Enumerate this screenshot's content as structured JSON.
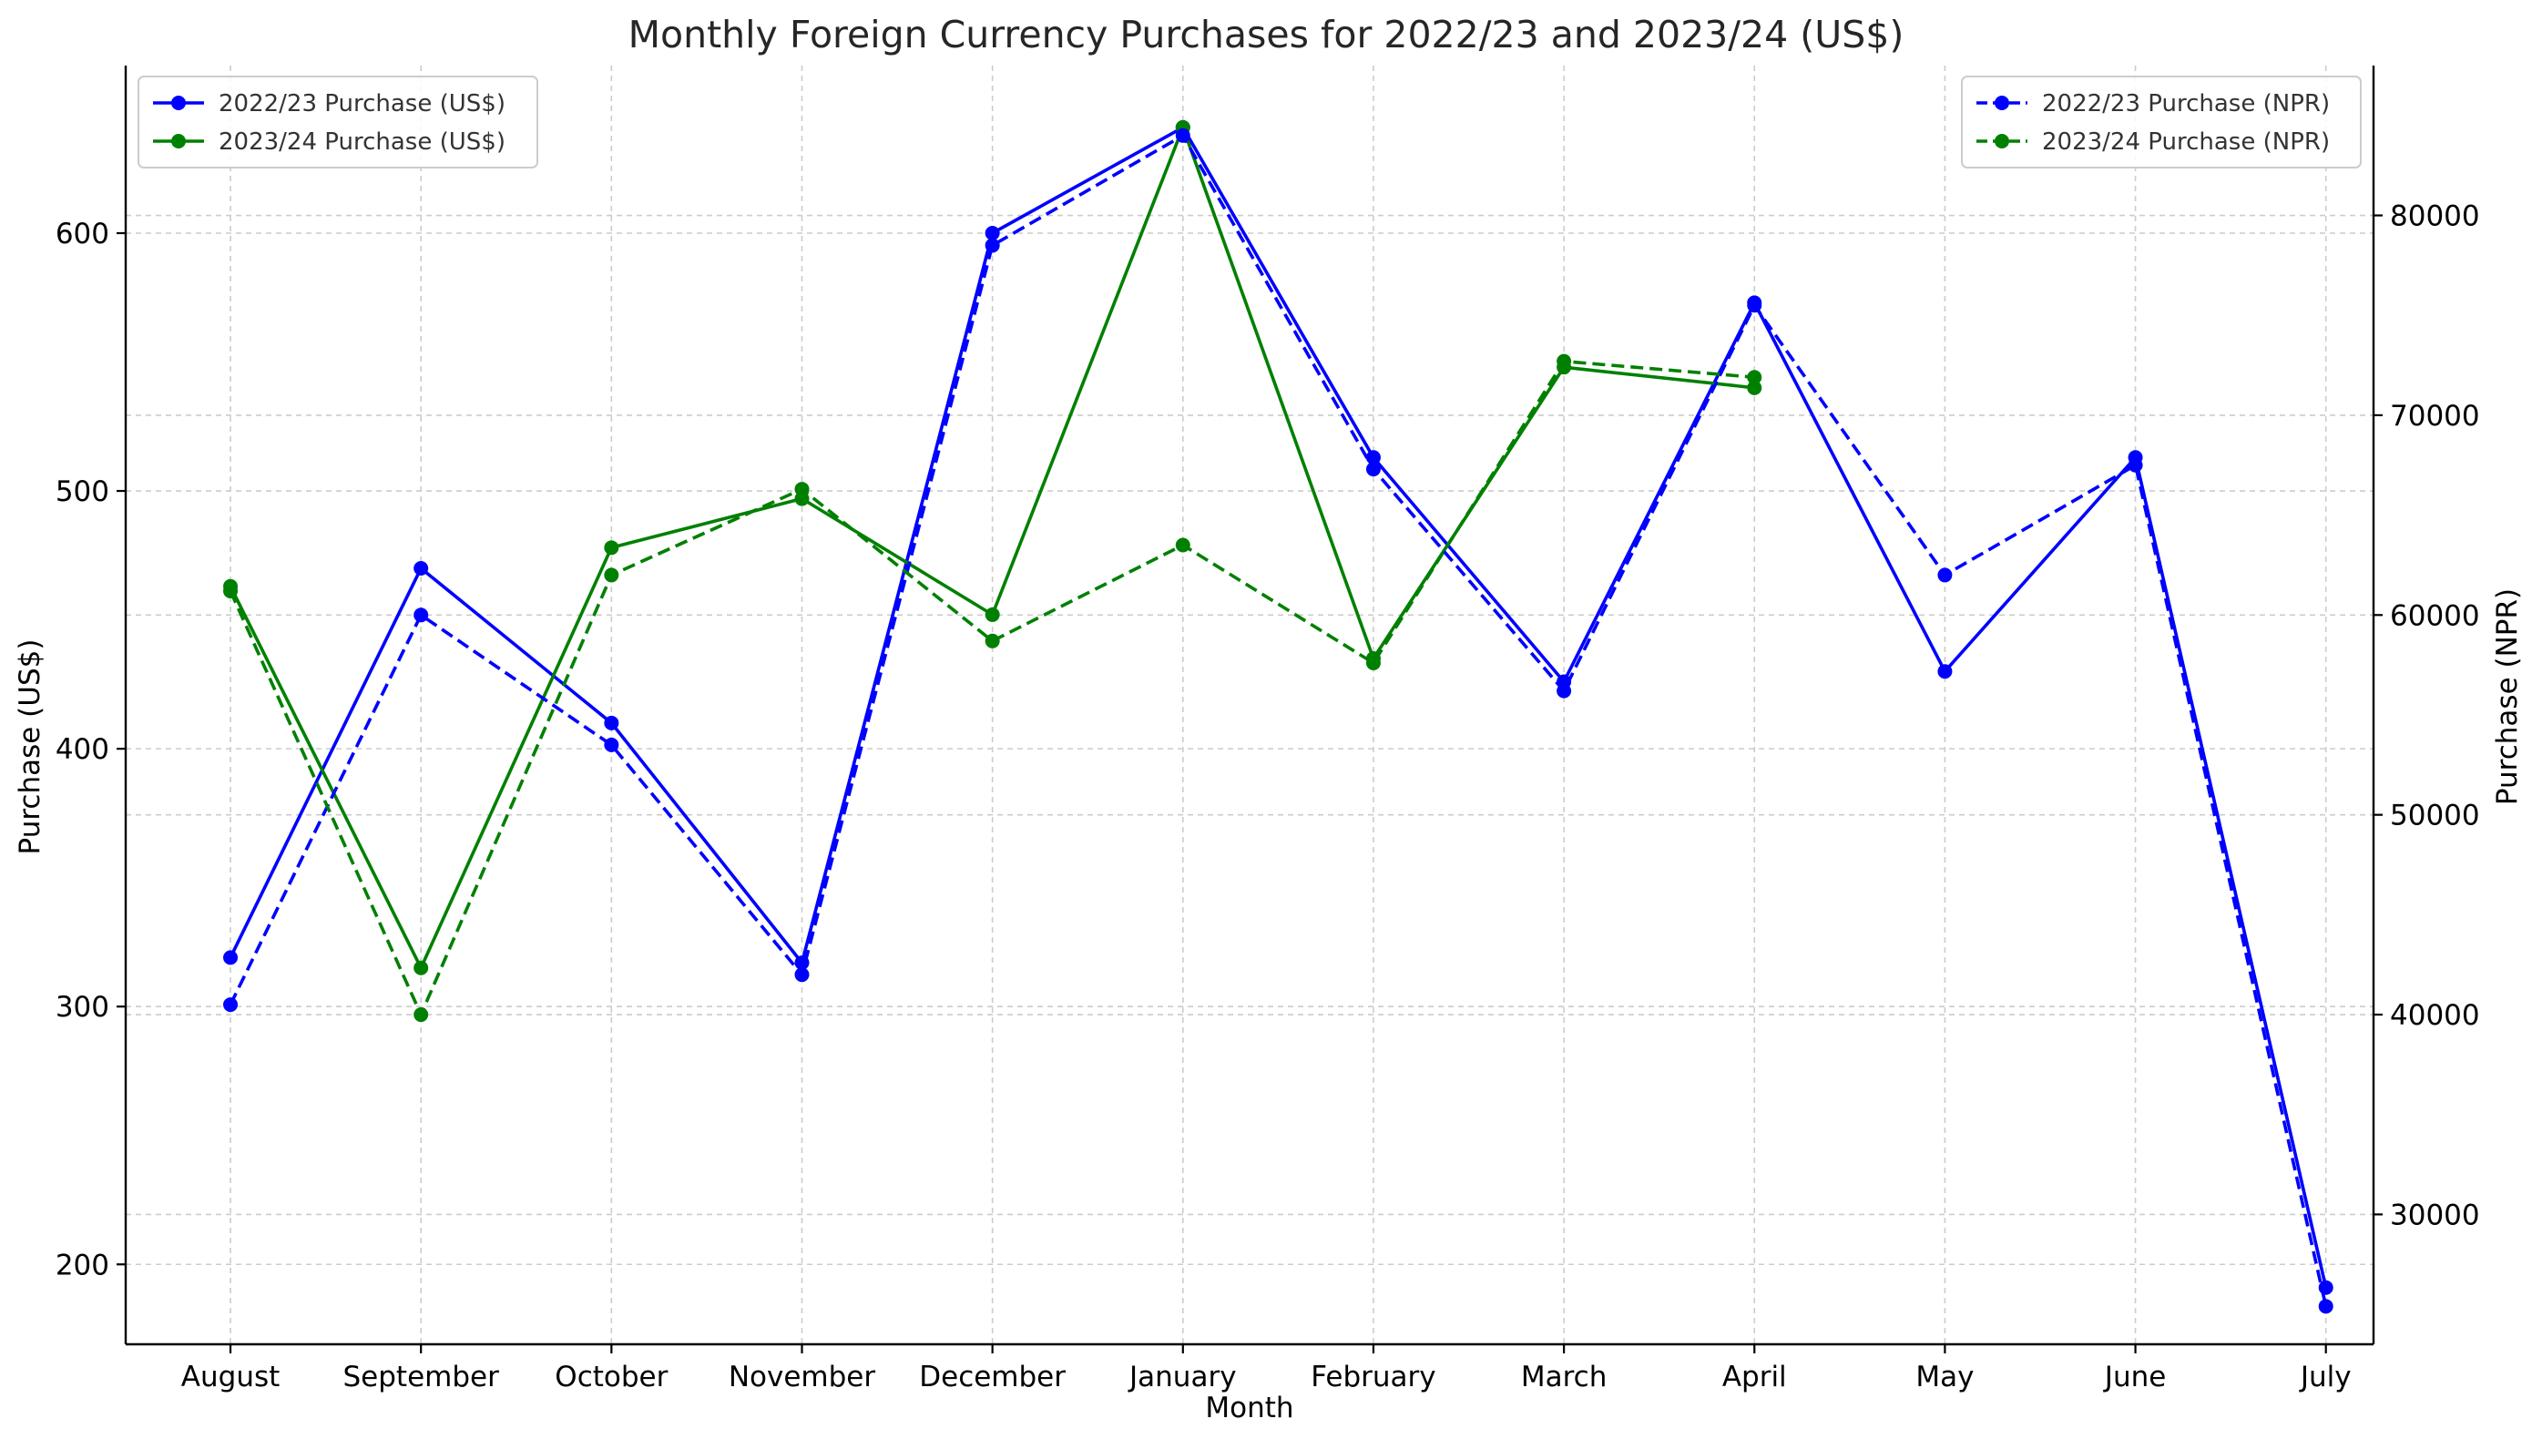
{
  "chart_data": {
    "type": "line",
    "title": "Monthly Foreign Currency Purchases for 2022/23 and 2023/24 (US$)",
    "xlabel": "Month",
    "ylabel": "Purchase (US$)",
    "y2label": "Purchase (NPR)",
    "categories": [
      "August",
      "September",
      "October",
      "November",
      "December",
      "January",
      "February",
      "March",
      "April",
      "May",
      "June",
      "July"
    ],
    "ylim": [
      169,
      665
    ],
    "y2lim": [
      23500,
      87500
    ],
    "yticks": [
      200,
      300,
      400,
      500,
      600
    ],
    "y2ticks": [
      30000,
      40000,
      50000,
      60000,
      70000,
      80000
    ],
    "y2tick_labels": [
      "30000",
      "40000",
      "50000",
      "60000",
      "70000",
      "80000"
    ],
    "grid": true,
    "legend_left_placement": "upper-left",
    "legend_right_placement": "upper-right",
    "series": [
      {
        "name": "2022/23 Purchase (US$)",
        "axis": "left",
        "color": "#0000ff",
        "dashed": false,
        "values": [
          319,
          470,
          410,
          317,
          600,
          641,
          513,
          426,
          573,
          430,
          513,
          191
        ]
      },
      {
        "name": "2023/24 Purchase (US$)",
        "axis": "left",
        "color": "#008000",
        "dashed": false,
        "values": [
          463,
          315,
          478,
          497,
          452,
          641,
          435,
          548,
          540,
          null,
          null,
          null
        ]
      },
      {
        "name": "2022/23 Purchase (NPR)",
        "axis": "right",
        "color": "#0000ff",
        "dashed": true,
        "values": [
          40500,
          60000,
          53500,
          42000,
          78500,
          84000,
          67300,
          56200,
          75500,
          62000,
          67500,
          25400
        ]
      },
      {
        "name": "2023/24 Purchase (NPR)",
        "axis": "right",
        "color": "#008000",
        "dashed": true,
        "values": [
          61200,
          40000,
          62000,
          66300,
          58700,
          63500,
          57600,
          72700,
          71900,
          null,
          null,
          null
        ]
      }
    ]
  }
}
